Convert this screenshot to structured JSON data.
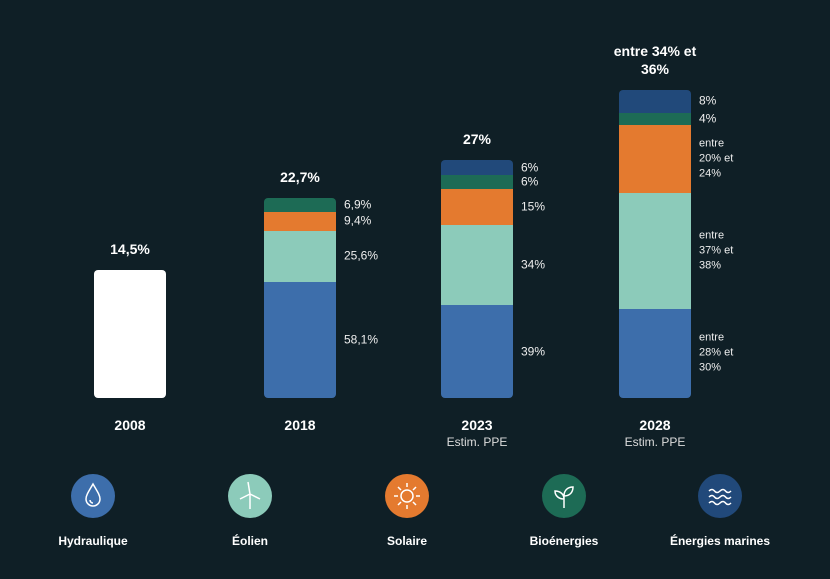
{
  "chart_data": {
    "type": "stacked-bar",
    "categories": [
      "2008",
      "2018",
      "2023",
      "2028"
    ],
    "category_notes": [
      null,
      null,
      "Estim. PPE",
      "Estim. PPE"
    ],
    "totals": [
      14.5,
      22.7,
      27,
      {
        "low": 34,
        "high": 36
      }
    ],
    "total_labels": [
      "14,5%",
      "22,7%",
      "27%",
      "entre 34% et 36%"
    ],
    "total_color": "#ffffff",
    "series": [
      {
        "name": "Hydraulique",
        "color": "#3d6eab",
        "values": [
          null,
          58.1,
          39,
          {
            "low": 28,
            "high": 30
          }
        ],
        "value_labels": [
          null,
          "58,1%",
          "39%",
          "entre 28% et 30%"
        ]
      },
      {
        "name": "Éolien",
        "color": "#8ccbba",
        "values": [
          null,
          25.6,
          34,
          {
            "low": 37,
            "high": 38
          }
        ],
        "value_labels": [
          null,
          "25,6%",
          "34%",
          "entre 37% et 38%"
        ]
      },
      {
        "name": "Solaire",
        "color": "#e47a2f",
        "values": [
          null,
          9.4,
          15,
          {
            "low": 20,
            "high": 24
          }
        ],
        "value_labels": [
          null,
          "9,4%",
          "15%",
          "entre 20% et 24%"
        ]
      },
      {
        "name": "Bioénergies",
        "color": "#1d6b55",
        "values": [
          null,
          6.9,
          6,
          4
        ],
        "value_labels": [
          null,
          "6,9%",
          "6%",
          "4%"
        ]
      },
      {
        "name": "Énergies marines",
        "color": "#21497a",
        "values": [
          null,
          null,
          6,
          8
        ],
        "value_labels": [
          null,
          null,
          "6%",
          "8%"
        ]
      }
    ]
  }
}
